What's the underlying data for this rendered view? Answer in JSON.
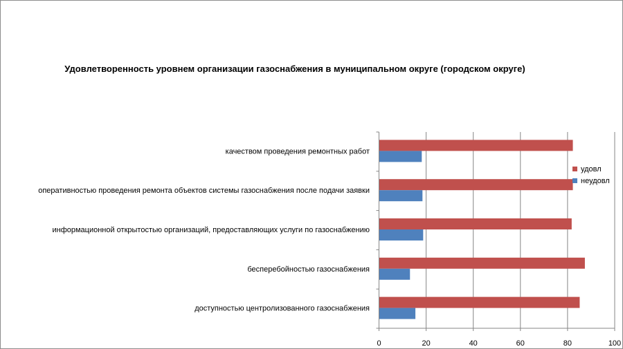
{
  "chart_data": {
    "type": "bar",
    "orientation": "horizontal",
    "title": "Удовлетворенность уровнем организации газоснабжения в муниципальном округе (городском округе)",
    "xlabel": "",
    "ylabel": "",
    "xlim": [
      0,
      100
    ],
    "xticks": [
      0,
      20,
      40,
      60,
      80,
      100
    ],
    "grid": true,
    "legend_position": "right",
    "categories": [
      "качеством проведения ремонтных работ",
      "оперативностью проведения ремонта объектов системы газоснабжения после подачи заявки",
      "информационной открытостью организаций, предоставляющих услуги по газоснабжению",
      "бесперебойностью газоснабжения",
      "доступностью центролизованного газоснабжения"
    ],
    "series": [
      {
        "name": "удовл",
        "color": "#c0504d",
        "values": [
          82.1,
          82.1,
          81.6,
          87.2,
          85.0
        ]
      },
      {
        "name": "неудовл",
        "color": "#4f81bd",
        "values": [
          18.0,
          18.3,
          18.6,
          13.0,
          15.3
        ]
      }
    ]
  }
}
